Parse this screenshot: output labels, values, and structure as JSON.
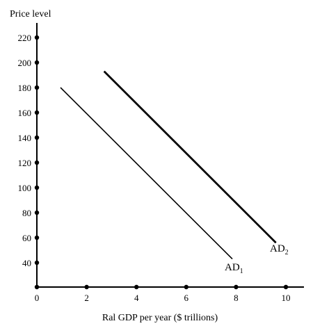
{
  "chart_data": {
    "type": "line",
    "title": "",
    "xlabel": "Ral GDP per year ($ trillions)",
    "ylabel": "Price level",
    "xlim": [
      0,
      10.5
    ],
    "ylim": [
      20,
      225
    ],
    "x_ticks": [
      0,
      2,
      4,
      6,
      8,
      10
    ],
    "y_ticks": [
      40,
      60,
      80,
      100,
      120,
      140,
      160,
      180,
      200,
      220
    ],
    "grid": false,
    "series": [
      {
        "name": "AD1",
        "label_main": "AD",
        "label_sub": "1",
        "points": [
          {
            "x": 0.95,
            "y": 180
          },
          {
            "x": 7.85,
            "y": 43
          }
        ],
        "stroke_weight": "thin",
        "color": "#000000"
      },
      {
        "name": "AD2",
        "label_main": "AD",
        "label_sub": "2",
        "points": [
          {
            "x": 2.7,
            "y": 193
          },
          {
            "x": 9.6,
            "y": 56
          }
        ],
        "stroke_weight": "thick",
        "color": "#000000"
      }
    ]
  }
}
